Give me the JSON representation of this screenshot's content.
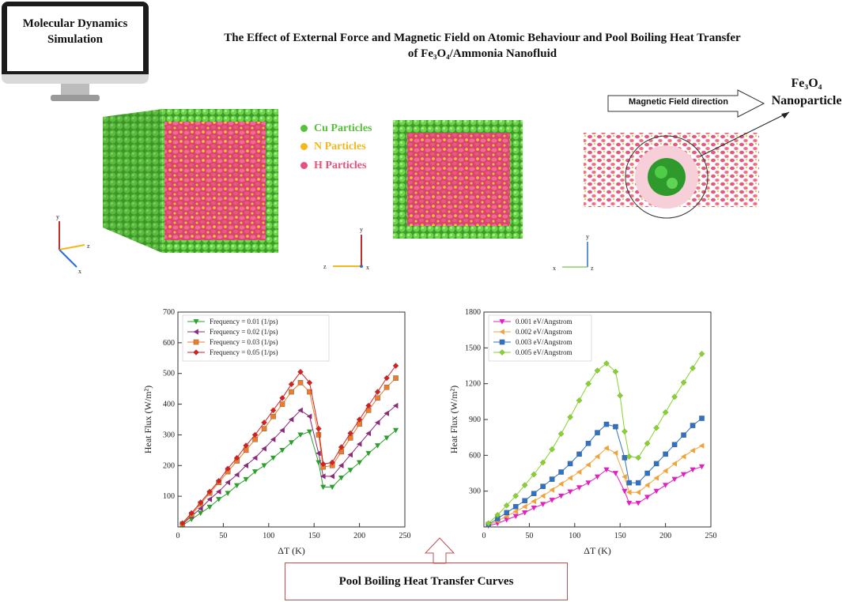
{
  "monitor": {
    "line1": "Molecular Dynamics",
    "line2": "Simulation"
  },
  "title": {
    "line1": "The Effect of External Force and Magnetic Field on Atomic Behaviour and Pool Boiling Heat Transfer",
    "line2": "of Fe₃O₄/Ammonia Nanofluid"
  },
  "particles_legend": [
    {
      "label": "Cu Particles",
      "color": "#56c13a"
    },
    {
      "label": "N Particles",
      "color": "#f2b81c"
    },
    {
      "label": "H Particles",
      "color": "#e4537a"
    }
  ],
  "magnetic_field_label": "Magnetic Field direction",
  "nanoparticle_label": {
    "line1": "Fe₃O₄",
    "line2": "Nanoparticle"
  },
  "axes_labels": {
    "x": "x",
    "y": "y",
    "z": "z"
  },
  "pool_boiling_label": "Pool Boiling Heat Transfer Curves",
  "chart_data": [
    {
      "type": "line",
      "xlabel": "ΔT (K)",
      "ylabel": "Heat Flux (W/m²)",
      "xlim": [
        0,
        250
      ],
      "ylim": [
        0,
        700
      ],
      "xticks": [
        0,
        50,
        100,
        150,
        200,
        250
      ],
      "yticks": [
        100,
        200,
        300,
        400,
        500,
        600,
        700
      ],
      "legend_position": "top-left",
      "series": [
        {
          "name": "Frequency = 0.01 (1/ps)",
          "color": "#2ca02c",
          "marker": "triangle-down",
          "x": [
            5,
            15,
            25,
            35,
            45,
            55,
            65,
            75,
            85,
            95,
            105,
            115,
            125,
            135,
            145,
            155,
            160,
            170,
            180,
            190,
            200,
            210,
            220,
            230,
            240
          ],
          "y": [
            5,
            25,
            45,
            65,
            90,
            110,
            135,
            155,
            180,
            200,
            225,
            250,
            275,
            300,
            310,
            210,
            130,
            130,
            160,
            185,
            210,
            240,
            265,
            290,
            315
          ]
        },
        {
          "name": "Frequency = 0.02 (1/ps)",
          "color": "#8b2c7a",
          "marker": "triangle-left",
          "x": [
            5,
            15,
            25,
            35,
            45,
            55,
            65,
            75,
            85,
            95,
            105,
            115,
            125,
            135,
            145,
            155,
            160,
            170,
            180,
            190,
            200,
            210,
            220,
            230,
            240
          ],
          "y": [
            8,
            35,
            60,
            90,
            115,
            145,
            170,
            200,
            225,
            255,
            285,
            315,
            350,
            380,
            360,
            240,
            165,
            165,
            200,
            235,
            270,
            305,
            340,
            370,
            395
          ]
        },
        {
          "name": "Frequency = 0.03 (1/ps)",
          "color": "#f07c28",
          "marker": "square",
          "x": [
            5,
            15,
            25,
            35,
            45,
            55,
            65,
            75,
            85,
            95,
            105,
            115,
            125,
            135,
            145,
            155,
            160,
            170,
            180,
            190,
            200,
            210,
            220,
            230,
            240
          ],
          "y": [
            10,
            40,
            75,
            110,
            145,
            180,
            215,
            250,
            285,
            320,
            360,
            400,
            440,
            470,
            440,
            300,
            195,
            200,
            245,
            290,
            335,
            380,
            420,
            455,
            485
          ]
        },
        {
          "name": "Frequency = 0.05 (1/ps)",
          "color": "#d62020",
          "marker": "diamond",
          "x": [
            5,
            15,
            25,
            35,
            45,
            55,
            65,
            75,
            85,
            95,
            105,
            115,
            125,
            135,
            145,
            155,
            160,
            170,
            180,
            190,
            200,
            210,
            220,
            230,
            240
          ],
          "y": [
            12,
            45,
            80,
            115,
            150,
            190,
            225,
            265,
            300,
            340,
            380,
            420,
            465,
            505,
            470,
            320,
            205,
            210,
            260,
            305,
            350,
            395,
            440,
            485,
            525
          ]
        }
      ]
    },
    {
      "type": "line",
      "xlabel": "ΔT (K)",
      "ylabel": "Heat Flux (W/m²)",
      "xlim": [
        0,
        250
      ],
      "ylim": [
        0,
        1800
      ],
      "xticks": [
        0,
        50,
        100,
        150,
        200,
        250
      ],
      "yticks": [
        300,
        600,
        900,
        1200,
        1500,
        1800
      ],
      "legend_position": "top-left",
      "series": [
        {
          "name": "0.001 eV/Angstrom",
          "color": "#e020c0",
          "marker": "triangle-down",
          "x": [
            5,
            15,
            25,
            35,
            45,
            55,
            65,
            75,
            85,
            95,
            105,
            115,
            125,
            135,
            145,
            155,
            160,
            170,
            180,
            190,
            200,
            210,
            220,
            230,
            240
          ],
          "y": [
            10,
            30,
            60,
            90,
            120,
            160,
            190,
            225,
            260,
            295,
            330,
            370,
            420,
            480,
            450,
            300,
            200,
            200,
            250,
            300,
            350,
            400,
            440,
            480,
            505
          ]
        },
        {
          "name": "0.002 eV/Angstrom",
          "color": "#f2a23a",
          "marker": "triangle-left",
          "x": [
            5,
            15,
            25,
            35,
            45,
            55,
            65,
            75,
            85,
            95,
            105,
            115,
            125,
            135,
            145,
            155,
            160,
            170,
            180,
            190,
            200,
            210,
            220,
            230,
            240
          ],
          "y": [
            15,
            50,
            90,
            130,
            170,
            215,
            260,
            310,
            360,
            410,
            460,
            520,
            590,
            660,
            620,
            420,
            290,
            290,
            350,
            410,
            470,
            530,
            590,
            640,
            680
          ]
        },
        {
          "name": "0.003 eV/Angstrom",
          "color": "#2c72c8",
          "marker": "square",
          "x": [
            5,
            15,
            25,
            35,
            45,
            55,
            65,
            75,
            85,
            95,
            105,
            115,
            125,
            135,
            145,
            155,
            160,
            170,
            180,
            190,
            200,
            210,
            220,
            230,
            240
          ],
          "y": [
            20,
            70,
            120,
            170,
            220,
            280,
            340,
            400,
            460,
            530,
            610,
            700,
            790,
            860,
            840,
            580,
            370,
            370,
            450,
            530,
            610,
            690,
            770,
            850,
            910
          ]
        },
        {
          "name": "0.005 eV/Angstrom",
          "color": "#86d427",
          "marker": "diamond",
          "x": [
            5,
            15,
            25,
            35,
            45,
            55,
            65,
            75,
            85,
            95,
            105,
            115,
            125,
            135,
            145,
            150,
            155,
            160,
            170,
            180,
            190,
            200,
            210,
            220,
            230,
            240
          ],
          "y": [
            30,
            100,
            180,
            260,
            350,
            440,
            540,
            650,
            780,
            920,
            1060,
            1200,
            1310,
            1370,
            1300,
            1100,
            800,
            590,
            580,
            700,
            830,
            960,
            1090,
            1210,
            1330,
            1450
          ]
        }
      ]
    }
  ]
}
